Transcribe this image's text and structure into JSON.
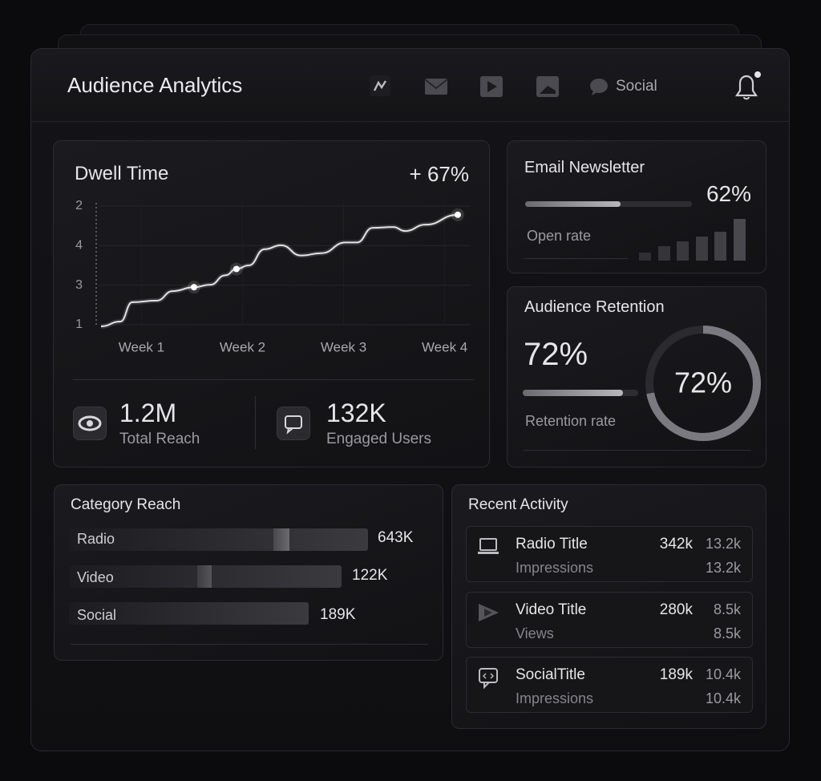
{
  "header": {
    "title": "Audience Analytics",
    "nav_label": "Social"
  },
  "dwell_time": {
    "title": "Dwell Time",
    "change": "+ 67%",
    "chart": {
      "type": "line",
      "x": [
        0.6,
        0.79,
        0.91,
        1.15,
        1.31,
        1.52,
        1.68,
        1.83,
        1.94,
        2.06,
        2.22,
        2.38,
        2.58,
        2.78,
        3.02,
        3.13,
        3.29,
        3.49,
        3.61,
        3.81,
        4.13
      ],
      "values": [
        0.96,
        1.08,
        1.57,
        1.61,
        1.85,
        1.95,
        2.01,
        2.25,
        2.41,
        2.5,
        2.91,
        3.01,
        2.75,
        2.81,
        3.08,
        3.08,
        3.45,
        3.47,
        3.37,
        3.53,
        3.78
      ],
      "xlim": [
        0.6,
        4.13
      ],
      "ylim": [
        1,
        4
      ],
      "xticks": [
        {
          "value": 1,
          "label": "Week 1"
        },
        {
          "value": 2,
          "label": "Week 2"
        },
        {
          "value": 3,
          "label": "Week 3"
        },
        {
          "value": 4,
          "label": "Week 4"
        }
      ],
      "y_labels": [
        "2",
        "4",
        "3",
        "1"
      ],
      "markers": [
        5,
        8,
        20
      ],
      "grid": true,
      "color": "#e4e4e6"
    },
    "stats": [
      {
        "value": "1.2M",
        "label": "Total Reach"
      },
      {
        "value": "132K",
        "label": "Engaged Users"
      }
    ]
  },
  "email": {
    "title": "Email Newsletter",
    "value": "62%",
    "caption": "Open rate"
  },
  "retention": {
    "title": "Audience Retention",
    "value": "72%",
    "caption": "Retention rate",
    "ring": {
      "value": 72,
      "value_label": "72%"
    }
  },
  "category_reach": {
    "title": "Category Reach",
    "rows": [
      {
        "label": "Radio",
        "value": "643K"
      },
      {
        "label": "Video",
        "value": "122K"
      },
      {
        "label": "Social",
        "value": "189K"
      }
    ]
  },
  "recent_activity": {
    "title": "Recent Activity",
    "items": [
      {
        "title": "Radio Title",
        "subtitle": "Impressions",
        "value": "342k",
        "secondary": "13.2k",
        "secondary_sub": "13.2k"
      },
      {
        "title": "Video Title",
        "subtitle": "Views",
        "value": "280k",
        "secondary": "8.5k",
        "secondary_sub": "8.5k"
      },
      {
        "title": "SocialTitle",
        "subtitle": "Impressions",
        "value": "189k",
        "secondary": "10.4k",
        "secondary_sub": "10.4k"
      }
    ]
  }
}
